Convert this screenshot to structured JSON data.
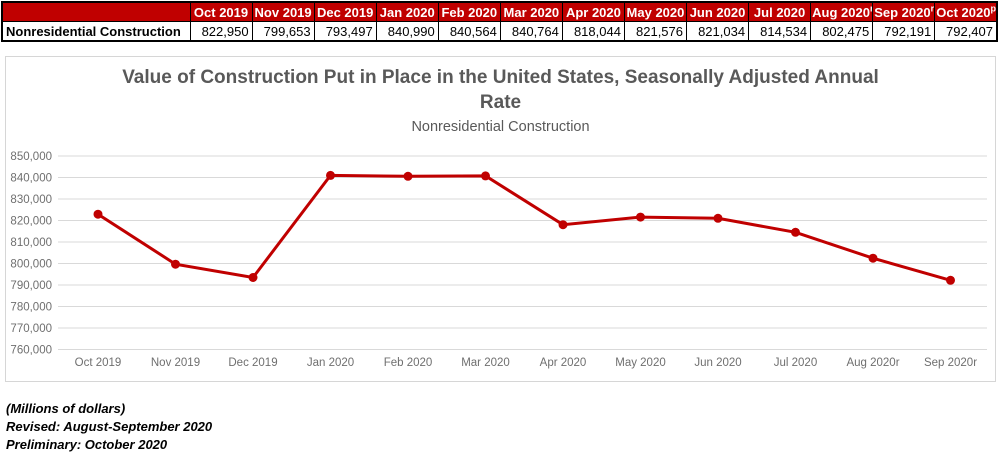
{
  "table": {
    "row_header": "Nonresidential Construction",
    "columns": [
      {
        "label": "Oct 2019",
        "sup": ""
      },
      {
        "label": "Nov 2019",
        "sup": ""
      },
      {
        "label": "Dec 2019",
        "sup": ""
      },
      {
        "label": "Jan 2020",
        "sup": ""
      },
      {
        "label": "Feb 2020",
        "sup": ""
      },
      {
        "label": "Mar 2020",
        "sup": ""
      },
      {
        "label": "Apr 2020",
        "sup": ""
      },
      {
        "label": "May 2020",
        "sup": ""
      },
      {
        "label": "Jun 2020",
        "sup": ""
      },
      {
        "label": "Jul 2020",
        "sup": ""
      },
      {
        "label": "Aug 2020",
        "sup": "r"
      },
      {
        "label": "Sep 2020",
        "sup": "r"
      },
      {
        "label": "Oct 2020",
        "sup": "p"
      }
    ],
    "values": [
      "822,950",
      "799,653",
      "793,497",
      "840,990",
      "840,564",
      "840,764",
      "818,044",
      "821,576",
      "821,034",
      "814,534",
      "802,475",
      "792,191",
      "792,407"
    ]
  },
  "chart": {
    "title_line1": "Value of Construction Put in Place in the United States, Seasonally Adjusted Annual",
    "title_line2": "Rate",
    "subtitle": "Nonresidential Construction"
  },
  "chart_data": {
    "type": "line",
    "title": "Value of Construction Put in Place in the United States, Seasonally Adjusted Annual Rate",
    "subtitle": "Nonresidential Construction",
    "xlabel": "",
    "ylabel": "",
    "x": [
      "Oct 2019",
      "Nov 2019",
      "Dec 2019",
      "Jan 2020",
      "Feb 2020",
      "Mar 2020",
      "Apr 2020",
      "May 2020",
      "Jun 2020",
      "Jul 2020",
      "Aug 2020r",
      "Sep 2020r"
    ],
    "series": [
      {
        "name": "Nonresidential Construction",
        "values": [
          822950,
          799653,
          793497,
          840990,
          840564,
          840764,
          818044,
          821576,
          821034,
          814534,
          802475,
          792191
        ]
      }
    ],
    "ylim": [
      760000,
      850000
    ],
    "ytick_step": 10000,
    "grid": true,
    "legend": "none",
    "line_color": "#C00000",
    "marker": "circle"
  },
  "footnotes": [
    "(Millions of dollars)",
    "Revised: August-September 2020",
    "Preliminary: October 2020"
  ],
  "colors": {
    "header_red": "#C00000",
    "line_red": "#C00000",
    "title_gray": "#595959",
    "axis_label_gray": "#6F6F6F",
    "gridline_gray": "#D9D9D9",
    "chart_border_gray": "#D6D6D6",
    "table_border_black": "#000000"
  }
}
